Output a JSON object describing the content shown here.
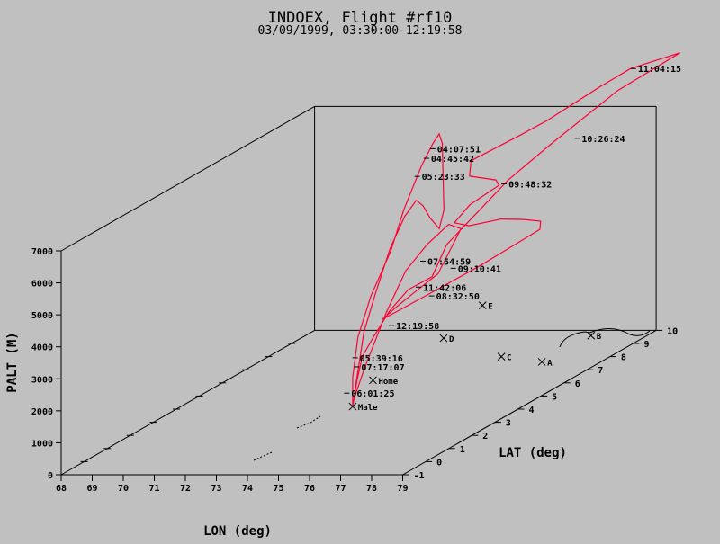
{
  "chart_data": {
    "type": "3d-line",
    "title": "INDOEX, Flight #rf10",
    "subtitle": "03/09/1999, 03:30:00-12:19:58",
    "xlabel": "LON (deg)",
    "ylabel": "LAT (deg)",
    "zlabel": "PALT (M)",
    "xlim": [
      68,
      79
    ],
    "ylim": [
      -1,
      10
    ],
    "zlim": [
      0,
      7000
    ],
    "x_ticks": [
      68,
      69,
      70,
      71,
      72,
      73,
      74,
      75,
      76,
      77,
      78,
      79
    ],
    "y_ticks": [
      -1,
      0,
      1,
      2,
      3,
      4,
      5,
      6,
      7,
      8,
      9,
      10
    ],
    "z_ticks": [
      0,
      1000,
      2000,
      3000,
      4000,
      5000,
      6000,
      7000
    ],
    "track_color": "#ff0033",
    "track": [
      [
        73.53,
        4.2,
        0
      ],
      [
        73.53,
        4.2,
        900
      ],
      [
        73.4,
        4.6,
        2000
      ],
      [
        73.3,
        5.3,
        3000
      ],
      [
        73.2,
        6.3,
        4000
      ],
      [
        73.1,
        7.0,
        5000
      ],
      [
        73.0,
        7.9,
        6000
      ],
      [
        73.0,
        8.4,
        6500
      ],
      [
        73.2,
        8.4,
        6800
      ],
      [
        73.3,
        8.4,
        6500
      ],
      [
        73.4,
        8.3,
        5500
      ],
      [
        73.5,
        8.2,
        4500
      ],
      [
        73.5,
        8.0,
        4000
      ],
      [
        73.5,
        7.6,
        4500
      ],
      [
        73.5,
        7.3,
        5000
      ],
      [
        73.5,
        7.0,
        5300
      ],
      [
        73.5,
        6.5,
        5000
      ],
      [
        73.4,
        6.0,
        4200
      ],
      [
        73.3,
        5.5,
        3000
      ],
      [
        73.3,
        5.0,
        2000
      ],
      [
        73.4,
        4.5,
        500
      ],
      [
        73.5,
        4.3,
        200
      ],
      [
        73.6,
        4.6,
        1000
      ],
      [
        73.8,
        5.3,
        2500
      ],
      [
        73.9,
        6.0,
        3500
      ],
      [
        74.0,
        6.8,
        4000
      ],
      [
        74.1,
        7.6,
        4300
      ],
      [
        74.2,
        8.0,
        4000
      ],
      [
        74.2,
        7.0,
        3000
      ],
      [
        74.1,
        6.2,
        2800
      ],
      [
        74.0,
        5.5,
        2600
      ],
      [
        73.9,
        5.0,
        2400
      ],
      [
        74.3,
        5.5,
        2600
      ],
      [
        74.7,
        6.4,
        2800
      ],
      [
        75.1,
        7.6,
        3000
      ],
      [
        75.4,
        8.5,
        3200
      ],
      [
        75.7,
        9.4,
        3400
      ],
      [
        75.8,
        9.3,
        3700
      ],
      [
        75.7,
        8.7,
        4000
      ],
      [
        75.5,
        8.0,
        4300
      ],
      [
        75.2,
        7.0,
        4500
      ],
      [
        75.1,
        6.5,
        4800
      ],
      [
        75.3,
        6.9,
        5200
      ],
      [
        75.5,
        7.9,
        5400
      ],
      [
        75.1,
        8.3,
        5400
      ],
      [
        74.4,
        8.1,
        5600
      ],
      [
        74.3,
        8.3,
        6000
      ],
      [
        74.8,
        9.8,
        6200
      ],
      [
        75.2,
        10.4,
        6400
      ],
      [
        75.9,
        11.7,
        6900
      ],
      [
        76.4,
        12.4,
        7200
      ],
      [
        77.1,
        13.6,
        7200
      ],
      [
        76.5,
        11.7,
        6800
      ],
      [
        75.9,
        9.7,
        6000
      ],
      [
        75.5,
        8.3,
        5400
      ],
      [
        75.0,
        6.3,
        4200
      ],
      [
        74.9,
        5.8,
        3400
      ],
      [
        74.5,
        5.3,
        3200
      ],
      [
        74.2,
        4.9,
        2700
      ],
      [
        73.9,
        4.6,
        2000
      ],
      [
        73.7,
        4.4,
        1500
      ],
      [
        73.6,
        4.3,
        800
      ],
      [
        73.53,
        4.2,
        0
      ]
    ],
    "time_labels": [
      {
        "text": "11:04:15",
        "lon": 76.4,
        "lat": 12.4,
        "alt": 7200
      },
      {
        "text": "10:26:24",
        "lon": 76.0,
        "lat": 10.5,
        "alt": 5800
      },
      {
        "text": "09:48:32",
        "lon": 75.5,
        "lat": 8.0,
        "alt": 5400
      },
      {
        "text": "09:10:41",
        "lon": 75.2,
        "lat": 6.2,
        "alt": 3500
      },
      {
        "text": "08:32:50",
        "lon": 74.8,
        "lat": 5.8,
        "alt": 2800
      },
      {
        "text": "07:54:59",
        "lon": 74.0,
        "lat": 6.5,
        "alt": 3600
      },
      {
        "text": "11:42:06",
        "lon": 74.6,
        "lat": 5.5,
        "alt": 3200
      },
      {
        "text": "04:07:51",
        "lon": 73.2,
        "lat": 8.0,
        "alt": 6500
      },
      {
        "text": "04:45:42",
        "lon": 73.0,
        "lat": 8.0,
        "alt": 6200
      },
      {
        "text": "05:23:33",
        "lon": 73.0,
        "lat": 7.6,
        "alt": 5800
      },
      {
        "text": "12:19:58",
        "lon": 74.1,
        "lat": 5.0,
        "alt": 2200
      },
      {
        "text": "07:17:07",
        "lon": 73.5,
        "lat": 4.3,
        "alt": 1200
      },
      {
        "text": "06:01:25",
        "lon": 73.4,
        "lat": 4.0,
        "alt": 500
      },
      {
        "text": "05:39:16",
        "lon": 73.3,
        "lat": 4.5,
        "alt": 1400
      }
    ],
    "waypoints": [
      {
        "name": "A",
        "lon": 77.1,
        "lat": 7.6,
        "alt": 0
      },
      {
        "name": "B",
        "lon": 77.2,
        "lat": 9.6,
        "alt": 0
      },
      {
        "name": "C",
        "lon": 75.5,
        "lat": 8.0,
        "alt": 0
      },
      {
        "name": "D",
        "lon": 72.6,
        "lat": 9.4,
        "alt": 0
      },
      {
        "name": "E",
        "lon": 72.0,
        "lat": 11.9,
        "alt": 0
      },
      {
        "name": "Home",
        "lon": 72.7,
        "lat": 6.2,
        "alt": 0
      },
      {
        "name": "Male",
        "lon": 73.53,
        "lat": 4.2,
        "alt": 0
      }
    ]
  }
}
